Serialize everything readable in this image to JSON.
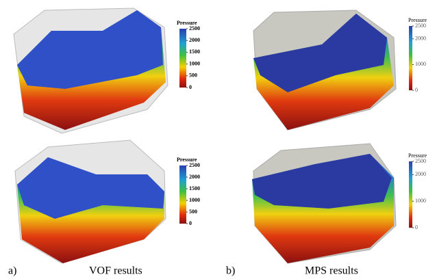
{
  "panels": [
    {
      "label": "a)",
      "caption": "VOF results",
      "plots": [
        {
          "colorbar": {
            "title": "Pressure",
            "ticks": [
              2500,
              2000,
              1500,
              1000,
              500,
              0
            ]
          }
        },
        {
          "colorbar": {
            "title": "Pressure",
            "ticks": [
              2500,
              2000,
              1500,
              1000,
              500,
              0
            ]
          }
        }
      ]
    },
    {
      "label": "b)",
      "caption": "MPS results",
      "plots": [
        {
          "colorbar": {
            "title": "Pressure",
            "ticks": [
              2500,
              2000,
              1000,
              0
            ]
          }
        },
        {
          "colorbar": {
            "title": "Pressure",
            "ticks": [
              2500,
              2000,
              1000,
              0
            ]
          }
        }
      ]
    }
  ]
}
